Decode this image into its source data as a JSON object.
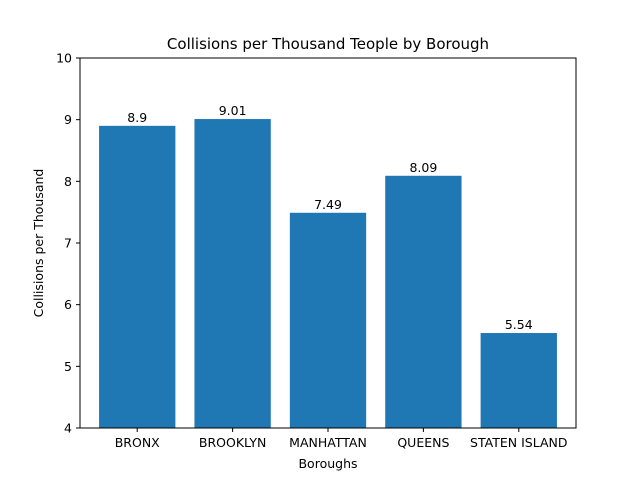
{
  "chart_data": {
    "type": "bar",
    "title": "Collisions per Thousand Teople by Borough",
    "xlabel": "Boroughs",
    "ylabel": "Collisions per Thousand",
    "categories": [
      "BRONX",
      "BROOKLYN",
      "MANHATTAN",
      "QUEENS",
      "STATEN ISLAND"
    ],
    "values": [
      8.9,
      9.01,
      7.49,
      8.09,
      5.54
    ],
    "data_labels": [
      "8.9",
      "9.01",
      "7.49",
      "8.09",
      "5.54"
    ],
    "ylim": [
      4,
      10
    ],
    "yticks": [
      "4",
      "5",
      "6",
      "7",
      "8",
      "9",
      "10"
    ],
    "bar_color": "#1f77b4",
    "grid": false,
    "legend": "none"
  }
}
